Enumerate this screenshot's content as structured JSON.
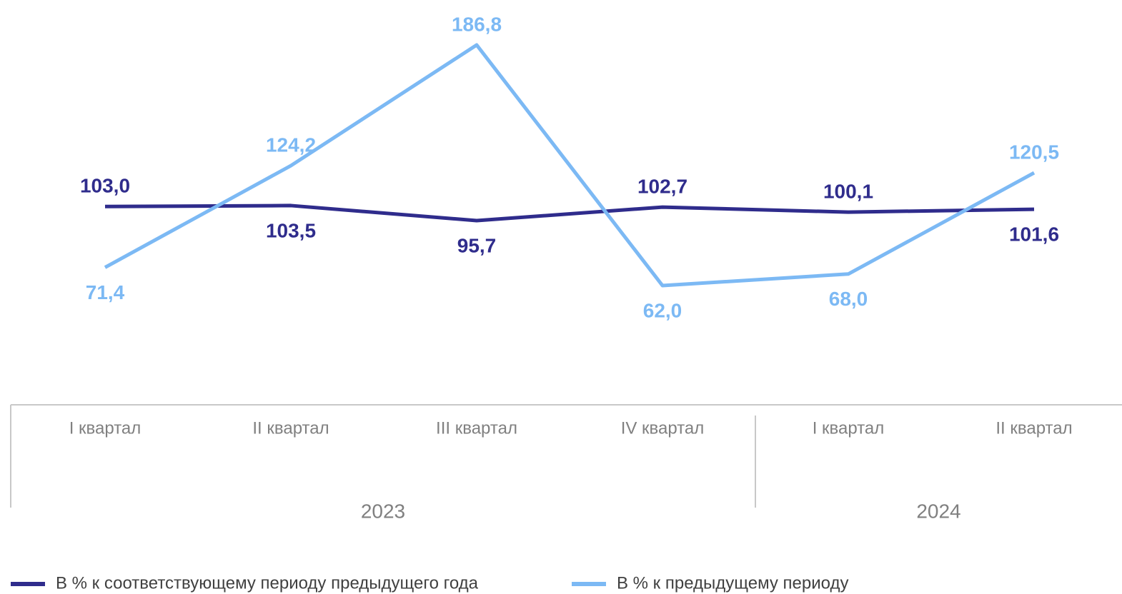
{
  "chart_data": {
    "type": "line",
    "groups": [
      {
        "label": "2023",
        "categories": [
          "I квартал",
          "II квартал",
          "III квартал",
          "IV квартал"
        ]
      },
      {
        "label": "2024",
        "categories": [
          "I квартал",
          "II квартал"
        ]
      }
    ],
    "series": [
      {
        "name": "В % к соответствующему периоду предыдущего года",
        "color": "#2f2c8c",
        "values": [
          103.0,
          103.5,
          95.7,
          102.7,
          100.1,
          101.6
        ],
        "value_labels": [
          "103,0",
          "103,5",
          "95,7",
          "102,7",
          "100,1",
          "101,6"
        ]
      },
      {
        "name": "В % к предыдущему периоду",
        "color": "#7cb9f4",
        "values": [
          71.4,
          124.2,
          186.8,
          62.0,
          68.0,
          120.5
        ],
        "value_labels": [
          "71,4",
          "124,2",
          "186,8",
          "62,0",
          "68,0",
          "120,5"
        ]
      }
    ],
    "legend": "bottom"
  }
}
